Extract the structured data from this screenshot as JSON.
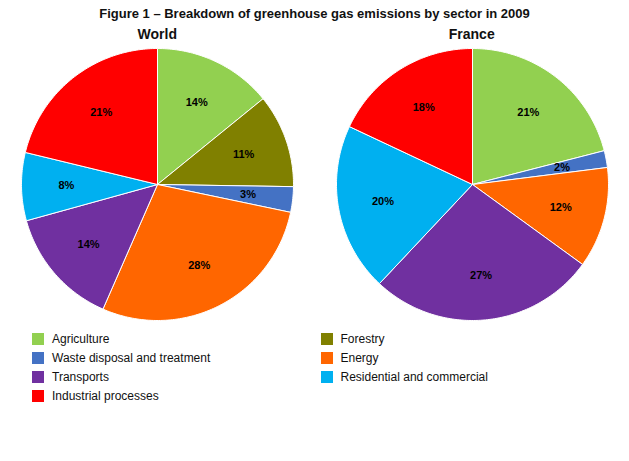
{
  "title": "Figure 1 – Breakdown of greenhouse gas emissions by sector in 2009",
  "chart_data": [
    {
      "type": "pie",
      "title": "World",
      "categories": [
        "Agriculture",
        "Forestry",
        "Waste disposal and treatment",
        "Energy",
        "Transports",
        "Residential and commercial",
        "Industrial processes"
      ],
      "values": [
        14,
        11,
        3,
        28,
        14,
        8,
        21
      ],
      "value_labels": [
        "14%",
        "11%",
        "3%",
        "28%",
        "14%",
        "8%",
        "21%"
      ],
      "colors": [
        "#92D050",
        "#808000",
        "#4472C4",
        "#FF6600",
        "#7030A0",
        "#00B0F0",
        "#FF0000"
      ],
      "data_labels": true,
      "legend": "bottom"
    },
    {
      "type": "pie",
      "title": "France",
      "categories": [
        "Agriculture",
        "Waste disposal and treatment",
        "Energy",
        "Transports",
        "Residential and commercial",
        "Industrial processes"
      ],
      "values": [
        21,
        2,
        12,
        27,
        20,
        18
      ],
      "value_labels": [
        "21%",
        "2%",
        "12%",
        "27%",
        "20%",
        "18%"
      ],
      "colors": [
        "#92D050",
        "#4472C4",
        "#FF6600",
        "#7030A0",
        "#00B0F0",
        "#FF0000"
      ],
      "data_labels": true,
      "legend": "bottom"
    }
  ]
}
